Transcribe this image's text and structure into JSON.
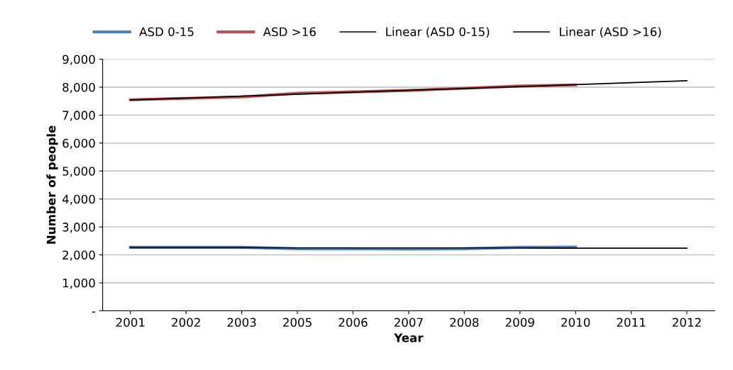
{
  "chart_data": {
    "type": "line",
    "xlabel": "Year",
    "ylabel": "Number of people",
    "categories": [
      "2001",
      "2002",
      "2003",
      "2005",
      "2006",
      "2007",
      "2008",
      "2009",
      "2010",
      "2011",
      "2012"
    ],
    "series": [
      {
        "name": "ASD 0-15",
        "color": "#4f81bd",
        "values": [
          2270,
          2270,
          2270,
          2220,
          2220,
          2210,
          2220,
          2270,
          2280,
          null,
          null
        ]
      },
      {
        "name": "ASD >16",
        "color": "#c0504d",
        "values": [
          7550,
          7600,
          7650,
          7780,
          7830,
          7880,
          7960,
          8040,
          8080,
          null,
          null
        ]
      },
      {
        "name": "Linear (ASD 0-15)",
        "color": "#000000",
        "values": [
          2260,
          2260,
          2260,
          2250,
          2250,
          2250,
          2250,
          2250,
          2240,
          2240,
          2240
        ]
      },
      {
        "name": "Linear (ASD >16)",
        "color": "#000000",
        "values": [
          7540,
          7610,
          7680,
          7750,
          7820,
          7890,
          7950,
          8020,
          8090,
          8160,
          8230
        ]
      }
    ],
    "ylim": [
      0,
      9000
    ],
    "yticks": [
      {
        "value": 0,
        "label": "-"
      },
      {
        "value": 1000,
        "label": "1,000"
      },
      {
        "value": 2000,
        "label": "2,000"
      },
      {
        "value": 3000,
        "label": "3,000"
      },
      {
        "value": 4000,
        "label": "4,000"
      },
      {
        "value": 5000,
        "label": "5,000"
      },
      {
        "value": 6000,
        "label": "6,000"
      },
      {
        "value": 7000,
        "label": "7,000"
      },
      {
        "value": 8000,
        "label": "8,000"
      },
      {
        "value": 9000,
        "label": "9,000"
      }
    ],
    "grid": "y",
    "legend": "top",
    "marker": "none",
    "line_style": "solid"
  }
}
